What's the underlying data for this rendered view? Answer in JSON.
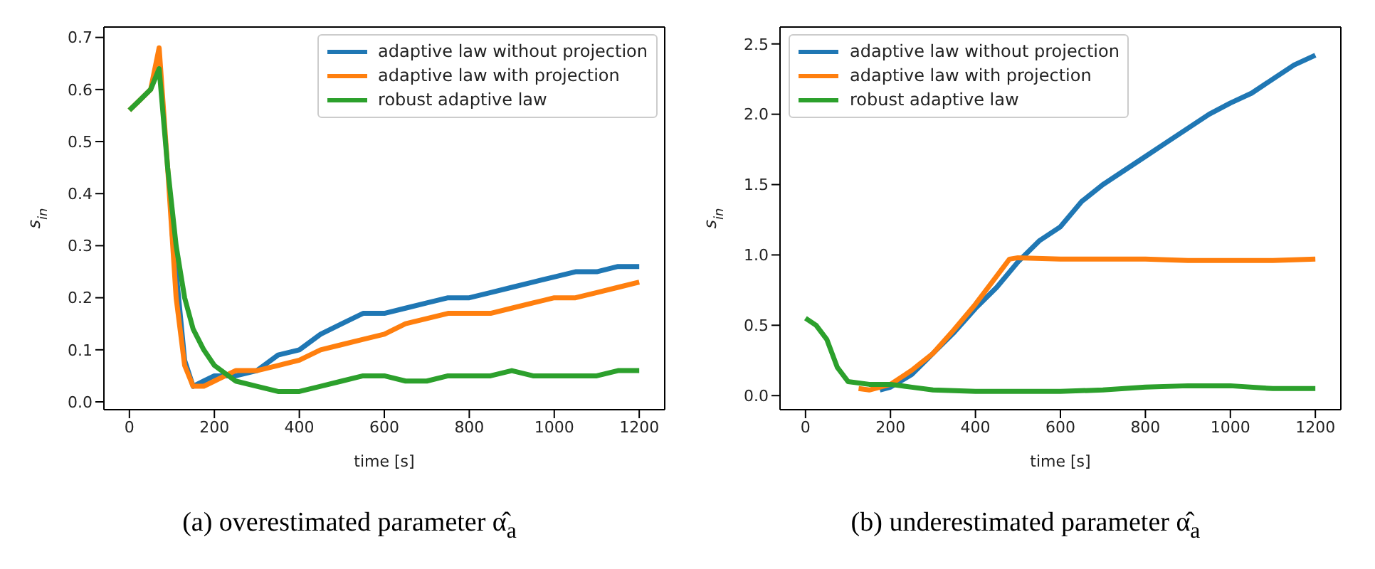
{
  "chart_data": [
    {
      "type": "line",
      "title": "(a) overestimated parameter α̂$_{a}$",
      "xlabel": "time [s]",
      "ylabel": "s$_{in}$",
      "xlim": [
        -60,
        1260
      ],
      "xticks": [
        0,
        200,
        400,
        600,
        800,
        1000,
        1200
      ],
      "ylim": [
        -0.015,
        0.72
      ],
      "yticks": [
        {
          "value": 0,
          "label": "0.0"
        },
        0.1,
        0.2,
        0.3,
        0.4,
        0.5,
        0.6,
        0.7
      ],
      "legend": "top right",
      "line_style": "solid",
      "series": [
        {
          "name": "adaptive law without projection",
          "color": "#1f77b4",
          "x": [
            100,
            110,
            130,
            150,
            175,
            200,
            250,
            300,
            350,
            400,
            450,
            500,
            550,
            600,
            650,
            700,
            750,
            800,
            850,
            900,
            950,
            1000,
            1050,
            1100,
            1150,
            1200
          ],
          "values": [
            0.33,
            0.25,
            0.08,
            0.03,
            0.04,
            0.05,
            0.05,
            0.06,
            0.09,
            0.1,
            0.13,
            0.15,
            0.17,
            0.17,
            0.18,
            0.19,
            0.2,
            0.2,
            0.21,
            0.22,
            0.23,
            0.24,
            0.25,
            0.25,
            0.26,
            0.26
          ]
        },
        {
          "name": "adaptive law with projection",
          "color": "#ff7f0e",
          "x": [
            0,
            25,
            50,
            70,
            90,
            110,
            130,
            150,
            175,
            200,
            250,
            300,
            350,
            400,
            450,
            500,
            550,
            600,
            650,
            700,
            750,
            800,
            850,
            900,
            950,
            1000,
            1050,
            1100,
            1150,
            1200
          ],
          "values": [
            0.56,
            0.58,
            0.6,
            0.68,
            0.45,
            0.2,
            0.07,
            0.03,
            0.03,
            0.04,
            0.06,
            0.06,
            0.07,
            0.08,
            0.1,
            0.11,
            0.12,
            0.13,
            0.15,
            0.16,
            0.17,
            0.17,
            0.17,
            0.18,
            0.19,
            0.2,
            0.2,
            0.21,
            0.22,
            0.23
          ]
        },
        {
          "name": "robust adaptive law",
          "color": "#2ca02c",
          "x": [
            0,
            25,
            50,
            70,
            90,
            110,
            130,
            150,
            175,
            200,
            250,
            300,
            350,
            400,
            450,
            500,
            550,
            600,
            650,
            700,
            750,
            800,
            850,
            900,
            950,
            1000,
            1050,
            1100,
            1150,
            1200
          ],
          "values": [
            0.56,
            0.58,
            0.6,
            0.64,
            0.45,
            0.3,
            0.2,
            0.14,
            0.1,
            0.07,
            0.04,
            0.03,
            0.02,
            0.02,
            0.03,
            0.04,
            0.05,
            0.05,
            0.04,
            0.04,
            0.05,
            0.05,
            0.05,
            0.06,
            0.05,
            0.05,
            0.05,
            0.05,
            0.06,
            0.06
          ]
        }
      ]
    },
    {
      "type": "line",
      "title": "(b) underestimated parameter α̂$_{a}$",
      "xlabel": "time [s]",
      "ylabel": "s$_{in}$",
      "xlim": [
        -60,
        1260
      ],
      "xticks": [
        0,
        200,
        400,
        600,
        800,
        1000,
        1200
      ],
      "ylim": [
        -0.1,
        2.62
      ],
      "yticks": [
        {
          "value": 0,
          "label": "0.0"
        },
        0.5,
        {
          "value": 1,
          "label": "1.0"
        },
        1.5,
        {
          "value": 2,
          "label": "2.0"
        },
        2.5
      ],
      "legend": "top left",
      "line_style": "solid",
      "series": [
        {
          "name": "adaptive law without projection",
          "color": "#1f77b4",
          "x": [
            175,
            200,
            250,
            300,
            350,
            400,
            450,
            500,
            550,
            600,
            650,
            700,
            750,
            800,
            850,
            900,
            950,
            1000,
            1050,
            1100,
            1150,
            1200
          ],
          "values": [
            0.04,
            0.06,
            0.15,
            0.3,
            0.45,
            0.62,
            0.77,
            0.95,
            1.1,
            1.2,
            1.38,
            1.5,
            1.6,
            1.7,
            1.8,
            1.9,
            2.0,
            2.08,
            2.15,
            2.25,
            2.35,
            2.42
          ]
        },
        {
          "name": "adaptive law with projection",
          "color": "#ff7f0e",
          "x": [
            125,
            150,
            200,
            250,
            300,
            350,
            400,
            450,
            480,
            500,
            600,
            700,
            800,
            900,
            1000,
            1100,
            1200
          ],
          "values": [
            0.05,
            0.04,
            0.08,
            0.18,
            0.3,
            0.47,
            0.65,
            0.85,
            0.97,
            0.98,
            0.97,
            0.97,
            0.97,
            0.96,
            0.96,
            0.96,
            0.97
          ]
        },
        {
          "name": "robust adaptive law",
          "color": "#2ca02c",
          "x": [
            0,
            25,
            50,
            75,
            100,
            150,
            200,
            250,
            300,
            400,
            500,
            600,
            700,
            800,
            900,
            1000,
            1100,
            1200
          ],
          "values": [
            0.55,
            0.5,
            0.4,
            0.2,
            0.1,
            0.08,
            0.08,
            0.06,
            0.04,
            0.03,
            0.03,
            0.03,
            0.04,
            0.06,
            0.07,
            0.07,
            0.05,
            0.05
          ]
        }
      ]
    }
  ]
}
